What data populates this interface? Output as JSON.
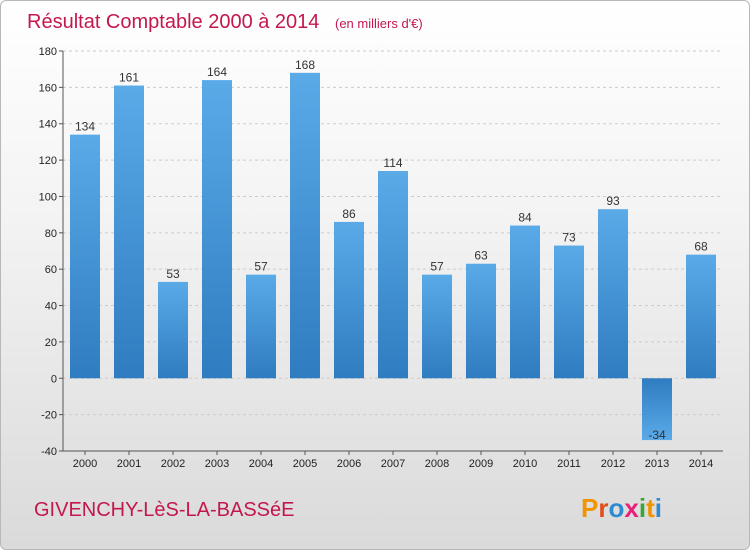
{
  "chart_data": {
    "type": "bar",
    "title": "Résultat Comptable 2000 à 2014",
    "subtitle": "(en milliers d'€)",
    "categories": [
      "2000",
      "2001",
      "2002",
      "2003",
      "2004",
      "2005",
      "2006",
      "2007",
      "2008",
      "2009",
      "2010",
      "2011",
      "2012",
      "2013",
      "2014"
    ],
    "values": [
      134,
      161,
      53,
      164,
      57,
      168,
      86,
      114,
      57,
      63,
      84,
      73,
      93,
      -34,
      68
    ],
    "ylim": [
      -40,
      180
    ],
    "yticks": [
      -40,
      -20,
      0,
      20,
      40,
      60,
      80,
      100,
      120,
      140,
      160,
      180
    ],
    "grid": true,
    "legend": "none"
  },
  "footer": {
    "commune": "GIVENCHY-LèS-LA-BASSéE",
    "brand_letters": [
      "P",
      "r",
      "o",
      "x",
      "i",
      "t",
      "i"
    ]
  },
  "colors": {
    "title": "#c4184d",
    "bar_light": "#5aaae8",
    "bar_dark": "#2f7cc0",
    "grid": "#cccccc",
    "brand": [
      "#f29400",
      "#e04e1b",
      "#2d8bd2",
      "#e8207c",
      "#3aa635",
      "#f29400",
      "#2d8bd2"
    ]
  }
}
